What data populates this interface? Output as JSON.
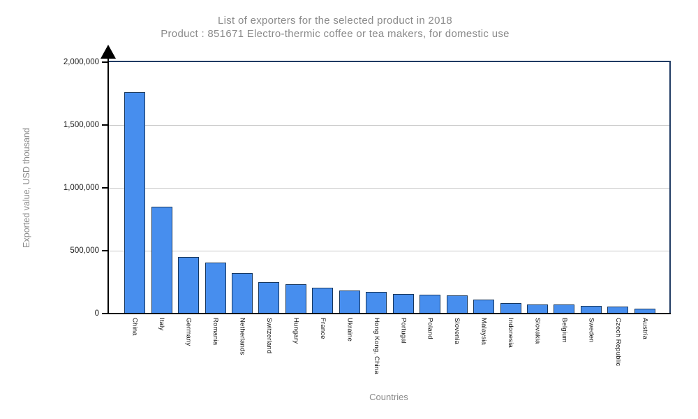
{
  "chart_data": {
    "type": "bar",
    "title": "List of exporters for the selected product in 2018",
    "subtitle": "Product : 851671 Electro-thermic coffee or tea makers, for domestic use",
    "xlabel": "Countries",
    "ylabel": "Exported value, USD thousand",
    "ylim": [
      0,
      2000000
    ],
    "yticks": [
      "0",
      "500,000",
      "1,000,000",
      "1,500,000",
      "2,000,000"
    ],
    "grid": "horizontal-gray",
    "legend_position": "none",
    "categories": [
      "China",
      "Italy",
      "Germany",
      "Romania",
      "Netherlands",
      "Switzerland",
      "Hungary",
      "France",
      "Ukraine",
      "Hong Kong, China",
      "Portugal",
      "Poland",
      "Slovenia",
      "Malaysia",
      "Indonesia",
      "Slovakia",
      "Belgium",
      "Sweden",
      "Czech Republic",
      "Austria"
    ],
    "values": [
      1762000,
      849000,
      449000,
      404000,
      324000,
      248000,
      235000,
      207000,
      181000,
      170000,
      157000,
      151000,
      142000,
      109000,
      84000,
      75000,
      74000,
      59000,
      57000,
      41000
    ],
    "colors": {
      "bar_fill": "#478EEE",
      "bar_border": "#17375D",
      "frame": "#1F3A63",
      "axis": "#000000",
      "gridline": "#C9C9C9",
      "title_text": "#8A8A8A"
    }
  }
}
